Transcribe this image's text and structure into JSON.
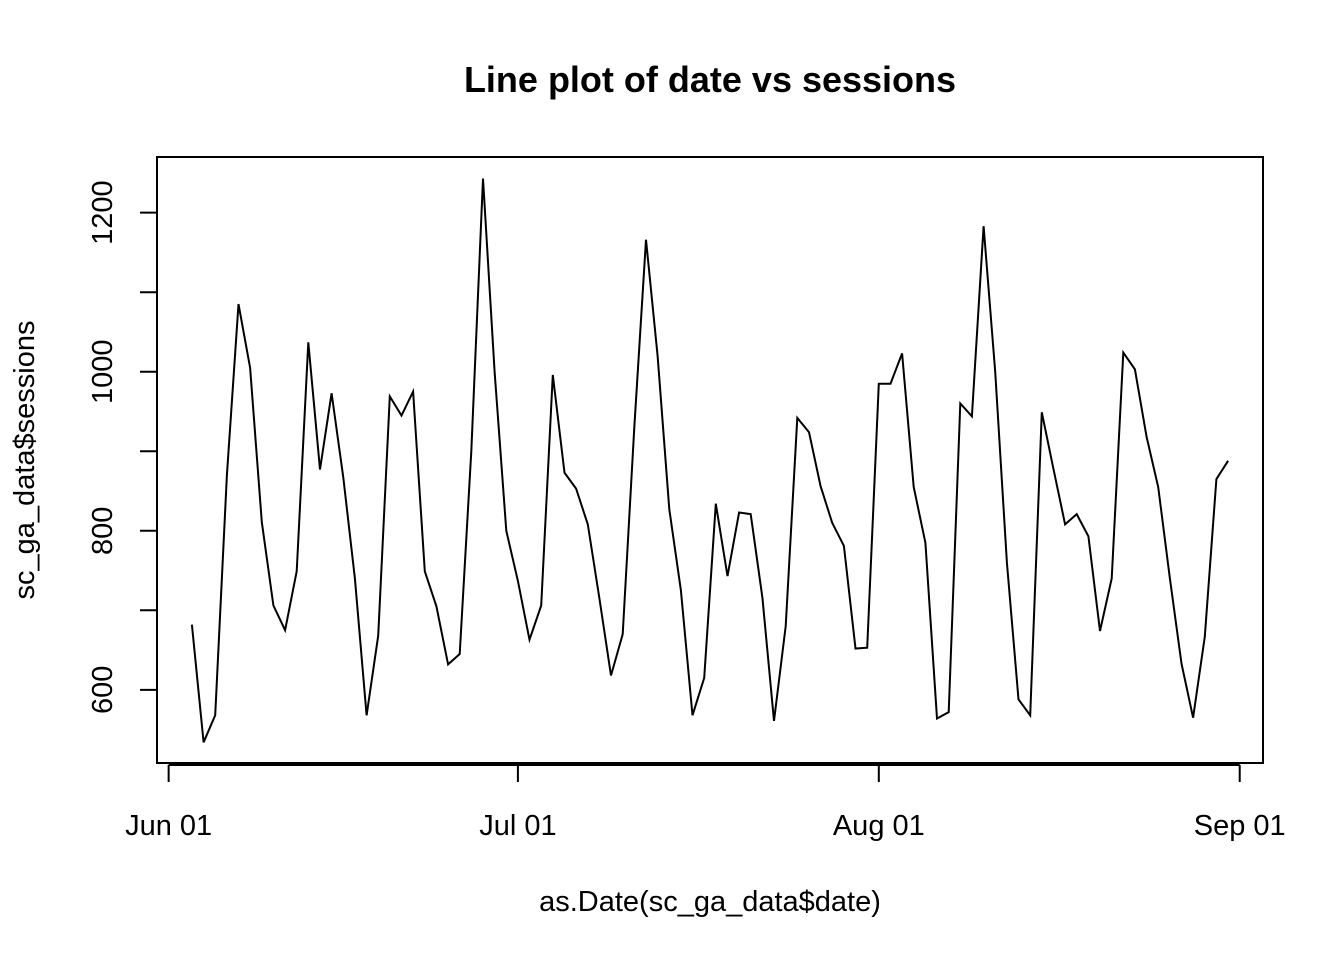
{
  "chart_data": {
    "type": "line",
    "title": "Line plot of date vs sessions",
    "xlabel": "as.Date(sc_ga_data$date)",
    "ylabel": "sc_ga_data$sessions",
    "x_tick_labels": [
      "Jun 01",
      "Jul 01",
      "Aug 01",
      "Sep 01"
    ],
    "x_tick_dates": [
      "2018-06-01",
      "2018-07-01",
      "2018-08-01",
      "2018-09-01"
    ],
    "y_ticks": [
      600,
      700,
      800,
      900,
      1000,
      1100,
      1200
    ],
    "y_tick_labels": [
      "600",
      "",
      "800",
      "",
      "1000",
      "",
      "1200"
    ],
    "xlim": [
      "2018-05-31",
      "2018-09-03"
    ],
    "ylim": [
      508,
      1270
    ],
    "grid": false,
    "series": [
      {
        "color": "#000000",
        "x": [
          "2018-06-03",
          "2018-06-04",
          "2018-06-05",
          "2018-06-06",
          "2018-06-07",
          "2018-06-08",
          "2018-06-09",
          "2018-06-10",
          "2018-06-11",
          "2018-06-12",
          "2018-06-13",
          "2018-06-14",
          "2018-06-15",
          "2018-06-16",
          "2018-06-17",
          "2018-06-18",
          "2018-06-19",
          "2018-06-20",
          "2018-06-21",
          "2018-06-22",
          "2018-06-23",
          "2018-06-24",
          "2018-06-25",
          "2018-06-26",
          "2018-06-27",
          "2018-06-28",
          "2018-06-29",
          "2018-06-30",
          "2018-07-01",
          "2018-07-02",
          "2018-07-03",
          "2018-07-04",
          "2018-07-05",
          "2018-07-06",
          "2018-07-07",
          "2018-07-08",
          "2018-07-09",
          "2018-07-10",
          "2018-07-11",
          "2018-07-12",
          "2018-07-13",
          "2018-07-14",
          "2018-07-15",
          "2018-07-16",
          "2018-07-17",
          "2018-07-18",
          "2018-07-19",
          "2018-07-20",
          "2018-07-21",
          "2018-07-22",
          "2018-07-23",
          "2018-07-24",
          "2018-07-25",
          "2018-07-26",
          "2018-07-27",
          "2018-07-28",
          "2018-07-29",
          "2018-07-30",
          "2018-07-31",
          "2018-08-01",
          "2018-08-02",
          "2018-08-03",
          "2018-08-04",
          "2018-08-05",
          "2018-08-06",
          "2018-08-07",
          "2018-08-08",
          "2018-08-09",
          "2018-08-10",
          "2018-08-11",
          "2018-08-12",
          "2018-08-13",
          "2018-08-14",
          "2018-08-15",
          "2018-08-16",
          "2018-08-17",
          "2018-08-18",
          "2018-08-19",
          "2018-08-20",
          "2018-08-21",
          "2018-08-22",
          "2018-08-23",
          "2018-08-24",
          "2018-08-25",
          "2018-08-26",
          "2018-08-27",
          "2018-08-28",
          "2018-08-29",
          "2018-08-30",
          "2018-08-31"
        ],
        "y": [
          682,
          534,
          568,
          870,
          1085,
          1005,
          811,
          706,
          675,
          749,
          1037,
          877,
          973,
          867,
          740,
          568,
          668,
          969,
          945,
          975,
          749,
          705,
          632,
          645,
          900,
          1243,
          1000,
          800,
          737,
          663,
          706,
          996,
          873,
          853,
          808,
          715,
          618,
          670,
          930,
          1166,
          1020,
          827,
          725,
          568,
          615,
          834,
          743,
          823,
          821,
          716,
          561,
          680,
          942,
          924,
          856,
          810,
          781,
          652,
          653,
          985,
          985,
          1023,
          855,
          785,
          564,
          572,
          960,
          944,
          1183,
          1000,
          760,
          588,
          568,
          949,
          878,
          808,
          821,
          793,
          674,
          740,
          1024,
          1003,
          918,
          855,
          740,
          633,
          565,
          667,
          865,
          888
        ]
      }
    ]
  }
}
